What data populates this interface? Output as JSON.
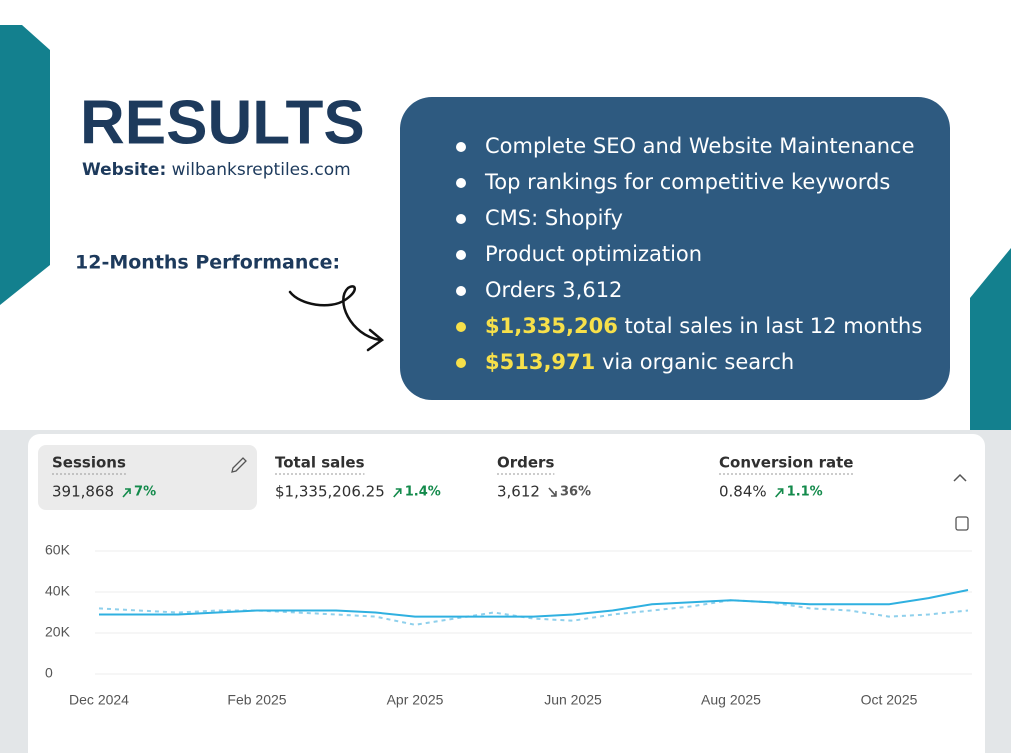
{
  "header": {
    "title": "RESULTS",
    "website_label": "Website:",
    "website": "wilbanksreptiles.com",
    "performance": "12-Months Performance:"
  },
  "bullets": [
    {
      "text": "Complete SEO and Website Maintenance"
    },
    {
      "text": "Top rankings for competitive keywords"
    },
    {
      "text": "CMS: Shopify"
    },
    {
      "text": "Product optimization"
    },
    {
      "text": "Orders 3,612"
    },
    {
      "highlight": "$1,335,206",
      "text": "total sales in last 12 months"
    },
    {
      "highlight": "$513,971",
      "text": "via organic search"
    }
  ],
  "metrics": [
    {
      "label": "Sessions",
      "value": "391,868",
      "change": "7%",
      "trend": "up"
    },
    {
      "label": "Total sales",
      "value": "$1,335,206.25",
      "change": "1.4%",
      "trend": "up"
    },
    {
      "label": "Orders",
      "value": "3,612",
      "change": "36%",
      "trend": "down"
    },
    {
      "label": "Conversion rate",
      "value": "0.84%",
      "change": "1.1%",
      "trend": "up"
    }
  ],
  "chart_data": {
    "type": "line",
    "categories": [
      "Dec 2024",
      null,
      null,
      null,
      "Feb 2025",
      null,
      null,
      null,
      "Apr 2025",
      null,
      null,
      null,
      "Jun 2025",
      null,
      null,
      null,
      "Aug 2025",
      null,
      null,
      null,
      "Oct 2025",
      null,
      null
    ],
    "series": [
      {
        "color": "#2fb0e0",
        "dashed": false,
        "values": [
          29000,
          29000,
          29000,
          30000,
          31000,
          31000,
          31000,
          30000,
          28000,
          28000,
          28000,
          28000,
          29000,
          31000,
          34000,
          35000,
          36000,
          35000,
          34000,
          34000,
          34000,
          37000,
          41000
        ]
      },
      {
        "color": "#8fd0ec",
        "dashed": true,
        "values": [
          32000,
          31000,
          30000,
          31000,
          31000,
          30000,
          29000,
          28000,
          24000,
          27000,
          30000,
          27000,
          26000,
          29000,
          31000,
          33000,
          36000,
          35000,
          32000,
          31000,
          28000,
          29000,
          31000
        ]
      }
    ],
    "ylim": [
      0,
      60000
    ],
    "yticks": [
      0,
      {
        "value": 20000,
        "label": "20K"
      },
      {
        "value": 40000,
        "label": "40K"
      },
      {
        "value": 60000,
        "label": "60K"
      }
    ],
    "grid": true
  }
}
